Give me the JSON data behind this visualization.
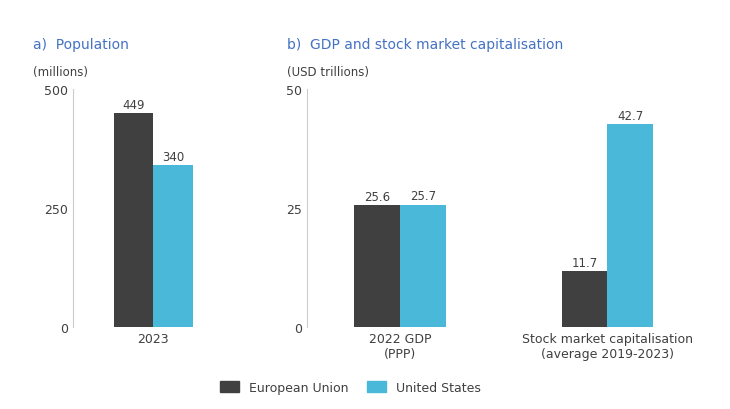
{
  "panel_a_title": "a)  Population",
  "panel_a_unit": "(millions)",
  "panel_b_title": "b)  GDP and stock market capitalisation",
  "panel_b_unit": "(USD trillions)",
  "eu_color": "#404040",
  "us_color": "#4ab8d8",
  "background_color": "#ffffff",
  "title_color": "#4472c4",
  "font_color": "#404040",
  "panel_a": {
    "categories": [
      "2023"
    ],
    "eu_values": [
      449
    ],
    "us_values": [
      340
    ],
    "ylim": [
      0,
      500
    ],
    "yticks": [
      0,
      250,
      500
    ],
    "bar_width": 0.22
  },
  "panel_b": {
    "categories": [
      "2022 GDP\n(PPP)",
      "Stock market capitalisation\n(average 2019-2023)"
    ],
    "eu_values": [
      25.6,
      11.7
    ],
    "us_values": [
      25.7,
      42.7
    ],
    "ylim": [
      0,
      50
    ],
    "yticks": [
      0,
      25,
      50
    ],
    "bar_width": 0.22
  },
  "legend_labels": [
    "European Union",
    "United States"
  ],
  "title_fontsize": 10,
  "unit_fontsize": 8.5,
  "tick_fontsize": 9,
  "bar_label_fontsize": 8.5,
  "legend_fontsize": 9
}
